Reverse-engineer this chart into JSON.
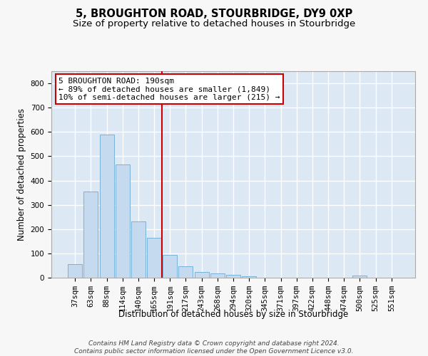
{
  "title": "5, BROUGHTON ROAD, STOURBRIDGE, DY9 0XP",
  "subtitle": "Size of property relative to detached houses in Stourbridge",
  "xlabel": "Distribution of detached houses by size in Stourbridge",
  "ylabel": "Number of detached properties",
  "categories": [
    "37sqm",
    "63sqm",
    "88sqm",
    "114sqm",
    "140sqm",
    "165sqm",
    "191sqm",
    "217sqm",
    "243sqm",
    "268sqm",
    "294sqm",
    "320sqm",
    "345sqm",
    "371sqm",
    "397sqm",
    "422sqm",
    "448sqm",
    "474sqm",
    "500sqm",
    "525sqm",
    "551sqm"
  ],
  "values": [
    57,
    355,
    588,
    465,
    232,
    163,
    95,
    48,
    23,
    18,
    13,
    5,
    1,
    1,
    1,
    1,
    0,
    0,
    8,
    0,
    1
  ],
  "bar_color": "#c5d9ef",
  "bar_edge_color": "#6aaad4",
  "vline_x": 6.0,
  "vline_color": "#cc0000",
  "annotation_text": "5 BROUGHTON ROAD: 190sqm\n← 89% of detached houses are smaller (1,849)\n10% of semi-detached houses are larger (215) →",
  "annotation_box_color": "#ffffff",
  "annotation_box_edge": "#cc0000",
  "ylim": [
    0,
    850
  ],
  "yticks": [
    0,
    100,
    200,
    300,
    400,
    500,
    600,
    700,
    800
  ],
  "bg_color": "#dde8f5",
  "grid_color": "#ffffff",
  "footer": "Contains HM Land Registry data © Crown copyright and database right 2024.\nContains public sector information licensed under the Open Government Licence v3.0.",
  "title_fontsize": 10.5,
  "subtitle_fontsize": 9.5,
  "xlabel_fontsize": 8.5,
  "ylabel_fontsize": 8.5,
  "tick_fontsize": 7.5,
  "annotation_fontsize": 8,
  "footer_fontsize": 6.5
}
